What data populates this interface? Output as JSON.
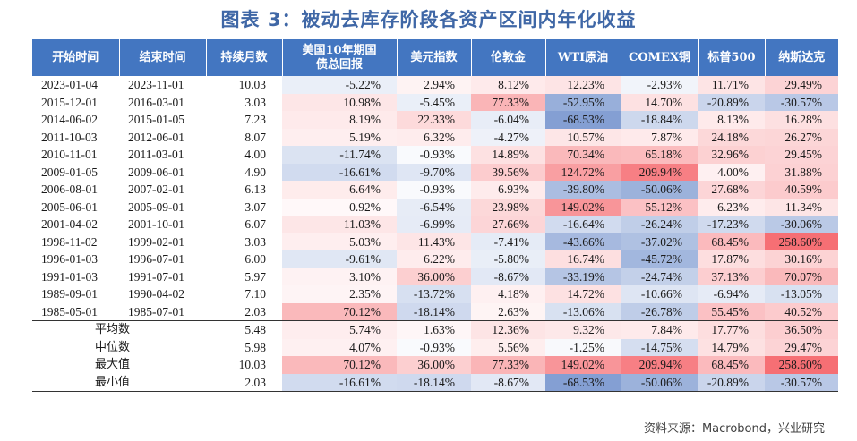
{
  "title": "图表 3：被动去库存阶段各资产区间内年化收益",
  "source": "资料来源：Macrobond，兴业研究",
  "colors": {
    "header_bg": "#4376c1",
    "title_color": "#3f67a6",
    "positive_max": "#f4565c",
    "negative_max": "#5b7fc4"
  },
  "headers": [
    "开始时间",
    "结束时间",
    "持续月数",
    "美国10年期国债总回报",
    "美元指数",
    "伦敦金",
    "WTI原油",
    "COMEX铜",
    "标普500",
    "纳斯达克"
  ],
  "rows": [
    {
      "start": "2023-01-04",
      "end": "2023-11-01",
      "months": "10.03",
      "values": [
        "-5.22%",
        "2.94%",
        "8.12%",
        "12.23%",
        "-2.93%",
        "11.71%",
        "29.49%"
      ]
    },
    {
      "start": "2015-12-01",
      "end": "2016-03-01",
      "months": "3.03",
      "values": [
        "10.98%",
        "-5.45%",
        "77.33%",
        "-52.95%",
        "14.70%",
        "-20.89%",
        "-30.57%"
      ]
    },
    {
      "start": "2014-06-02",
      "end": "2015-01-05",
      "months": "7.23",
      "values": [
        "8.19%",
        "22.33%",
        "-6.04%",
        "-68.53%",
        "-18.84%",
        "8.13%",
        "16.28%"
      ]
    },
    {
      "start": "2011-10-03",
      "end": "2012-06-01",
      "months": "8.07",
      "values": [
        "5.19%",
        "6.32%",
        "-4.27%",
        "10.57%",
        "7.87%",
        "24.18%",
        "26.27%"
      ]
    },
    {
      "start": "2010-11-01",
      "end": "2011-03-01",
      "months": "4.00",
      "values": [
        "-11.74%",
        "-0.93%",
        "14.89%",
        "70.34%",
        "65.18%",
        "32.96%",
        "29.45%"
      ]
    },
    {
      "start": "2009-01-05",
      "end": "2009-06-01",
      "months": "4.90",
      "values": [
        "-16.61%",
        "-9.70%",
        "39.56%",
        "124.72%",
        "209.94%",
        "4.00%",
        "31.88%"
      ]
    },
    {
      "start": "2006-08-01",
      "end": "2007-02-01",
      "months": "6.13",
      "values": [
        "6.64%",
        "-0.93%",
        "6.93%",
        "-39.80%",
        "-50.06%",
        "27.68%",
        "40.59%"
      ]
    },
    {
      "start": "2005-06-01",
      "end": "2005-09-01",
      "months": "3.07",
      "values": [
        "0.92%",
        "-6.54%",
        "23.98%",
        "149.02%",
        "55.12%",
        "6.23%",
        "11.34%"
      ]
    },
    {
      "start": "2001-04-02",
      "end": "2001-10-01",
      "months": "6.07",
      "values": [
        "11.03%",
        "-6.99%",
        "27.66%",
        "-16.64%",
        "-26.24%",
        "-17.23%",
        "-30.06%"
      ]
    },
    {
      "start": "1998-11-02",
      "end": "1999-02-01",
      "months": "3.03",
      "values": [
        "5.03%",
        "11.43%",
        "-7.41%",
        "-43.66%",
        "-37.02%",
        "68.45%",
        "258.60%"
      ]
    },
    {
      "start": "1996-01-03",
      "end": "1996-07-01",
      "months": "6.00",
      "values": [
        "-9.61%",
        "6.22%",
        "-5.80%",
        "16.74%",
        "-45.72%",
        "17.87%",
        "30.16%"
      ]
    },
    {
      "start": "1991-01-03",
      "end": "1991-07-01",
      "months": "5.97",
      "values": [
        "3.10%",
        "36.00%",
        "-8.67%",
        "-33.19%",
        "-24.74%",
        "37.13%",
        "70.07%"
      ]
    },
    {
      "start": "1989-09-01",
      "end": "1990-04-02",
      "months": "7.10",
      "values": [
        "2.35%",
        "-13.72%",
        "4.18%",
        "14.72%",
        "-10.66%",
        "-6.94%",
        "-13.05%"
      ]
    },
    {
      "start": "1985-05-01",
      "end": "1985-07-01",
      "months": "2.03",
      "values": [
        "70.12%",
        "-18.14%",
        "2.63%",
        "-13.06%",
        "-26.78%",
        "55.45%",
        "40.52%"
      ]
    }
  ],
  "summary": [
    {
      "label": "平均数",
      "months": "5.48",
      "values": [
        "5.74%",
        "1.63%",
        "12.36%",
        "9.32%",
        "7.84%",
        "17.77%",
        "36.50%"
      ]
    },
    {
      "label": "中位数",
      "months": "5.98",
      "values": [
        "4.07%",
        "-0.93%",
        "5.56%",
        "-1.25%",
        "-14.75%",
        "14.79%",
        "29.47%"
      ]
    },
    {
      "label": "最大值",
      "months": "10.03",
      "values": [
        "70.12%",
        "36.00%",
        "77.33%",
        "149.02%",
        "209.94%",
        "68.45%",
        "258.60%"
      ]
    },
    {
      "label": "最小值",
      "months": "2.03",
      "values": [
        "-16.61%",
        "-18.14%",
        "-8.67%",
        "-68.53%",
        "-50.06%",
        "-20.89%",
        "-30.57%"
      ]
    }
  ]
}
